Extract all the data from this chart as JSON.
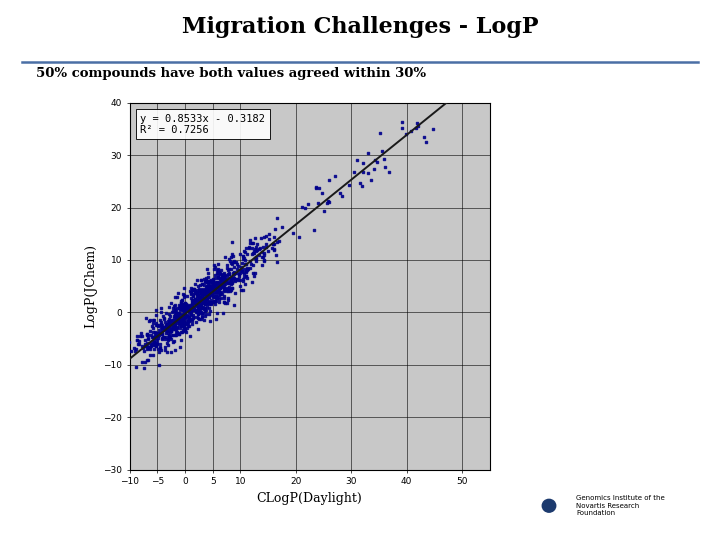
{
  "title": "Migration Challenges - LogP",
  "subtitle": "50% compounds have both values agreed within 30%",
  "xlabel": "CLogP(Daylight)",
  "ylabel": "LogP(JChem)",
  "equation": "y = 0.8533x - 0.3182",
  "r_squared": "R² = 0.7256",
  "slope": 0.8533,
  "intercept": -0.3182,
  "xlim": [
    -10,
    55
  ],
  "ylim": [
    -30,
    40
  ],
  "xticks": [
    -10,
    -5,
    0,
    5,
    10,
    20,
    30,
    40,
    50
  ],
  "yticks": [
    -30,
    -20,
    -10,
    0,
    10,
    20,
    30,
    40
  ],
  "plot_bg_color": "#c8c8c8",
  "slide_bg_color": "#ffffff",
  "title_color": "#000000",
  "data_color": "#00008B",
  "line_color": "#1a1a1a",
  "n_points": 900,
  "seed": 42,
  "x_center": 2.5,
  "x_spread": 5.5,
  "noise": 2.0,
  "genomics_text": "Genomics Institute of the\nNovartis Research\nFoundation"
}
